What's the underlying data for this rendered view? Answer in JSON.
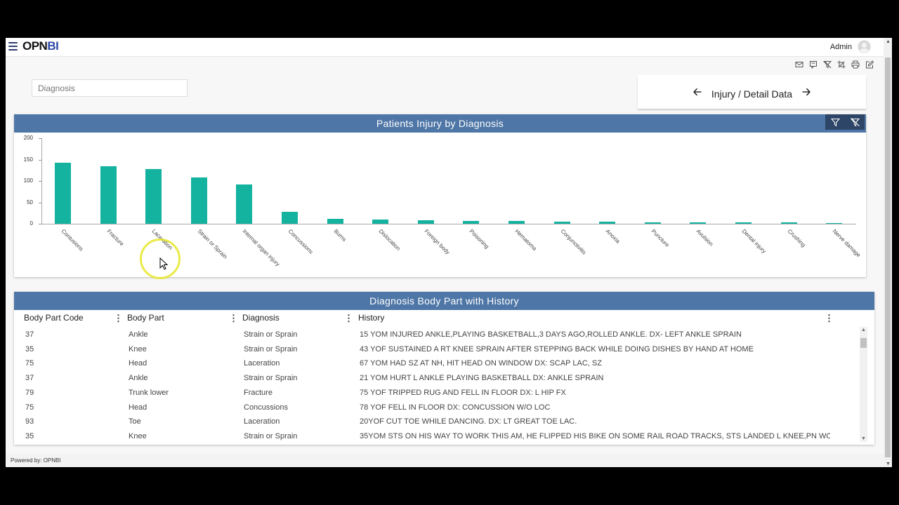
{
  "header": {
    "logo_dark": "OPN",
    "logo_blue": "BI",
    "user_name": "Admin",
    "tools": [
      "mail-icon",
      "comment-icon",
      "filter-clear-icon",
      "crop-icon",
      "print-icon",
      "edit-icon"
    ]
  },
  "filters": {
    "diagnosis_placeholder": "Diagnosis"
  },
  "navigation": {
    "title": "Injury / Detail Data",
    "prev_icon": "arrow-left-icon",
    "next_icon": "arrow-right-icon"
  },
  "chart_panel": {
    "title": "Patients Injury by Diagnosis",
    "bar_color": "#14b3a0",
    "header_color": "#4e76a6"
  },
  "chart_data": {
    "type": "bar",
    "title": "Patients Injury by Diagnosis",
    "xlabel": "",
    "ylabel": "",
    "ylim": [
      0,
      200
    ],
    "yticks": [
      0,
      50,
      100,
      150,
      200
    ],
    "grid": false,
    "legend": null,
    "categories": [
      "Contusions",
      "Fracture",
      "Laceration",
      "Strain or Sprain",
      "Internal organ injury",
      "Concussions",
      "Burns",
      "Dislocation",
      "Foreign body",
      "Poisoning",
      "Hematoma",
      "Conjunctivitis",
      "Anoxia",
      "Puncture",
      "Avulsion",
      "Dental injury",
      "Crushing",
      "Nerve damage"
    ],
    "values": [
      143,
      134,
      128,
      108,
      92,
      28,
      11,
      10,
      9,
      7,
      7,
      5,
      5,
      4,
      3,
      3,
      3,
      1
    ]
  },
  "table_panel": {
    "title": "Diagnosis Body Part with History",
    "columns": [
      "Body Part Code",
      "Body Part",
      "Diagnosis",
      "History"
    ],
    "rows": [
      [
        "37",
        "Ankle",
        "Strain or Sprain",
        "15 YOM INJURED ANKLE,PLAYING BASKETBALL,3 DAYS AGO,ROLLED ANKLE. DX- LEFT ANKLE SPRAIN"
      ],
      [
        "35",
        "Knee",
        "Strain or Sprain",
        "43 YOF SUSTAINED A RT KNEE SPRAIN AFTER STEPPING BACK WHILE DOING DISHES BY HAND AT HOME"
      ],
      [
        "75",
        "Head",
        "Laceration",
        "67 YOM HAD SZ AT NH, HIT HEAD ON WINDOW DX: SCAP LAC, SZ"
      ],
      [
        "37",
        "Ankle",
        "Strain or Sprain",
        "21 YOM HURT L ANKLE PLAYING BASKETBALL DX: ANKLE SPRAIN"
      ],
      [
        "79",
        "Trunk lower",
        "Fracture",
        "75 YOF TRIPPED RUG AND FELL IN FLOOR DX: L HIP FX"
      ],
      [
        "75",
        "Head",
        "Concussions",
        "78 YOF FELL IN FLOOR DX: CONCUSSION W/O LOC"
      ],
      [
        "93",
        "Toe",
        "Laceration",
        "20YOF CUT TOE WHILE DANCING. DX: LT GREAT TOE LAC."
      ],
      [
        "35",
        "Knee",
        "Strain or Sprain",
        "35YOM STS ON HIS WAY TO WORK THIS AM, HE FLIPPED HIS BIKE ON SOME RAIL ROAD TRACKS, STS LANDED L KNEE,PN WO..."
      ]
    ]
  },
  "footer": {
    "text": "Powered by: OPNBI"
  }
}
